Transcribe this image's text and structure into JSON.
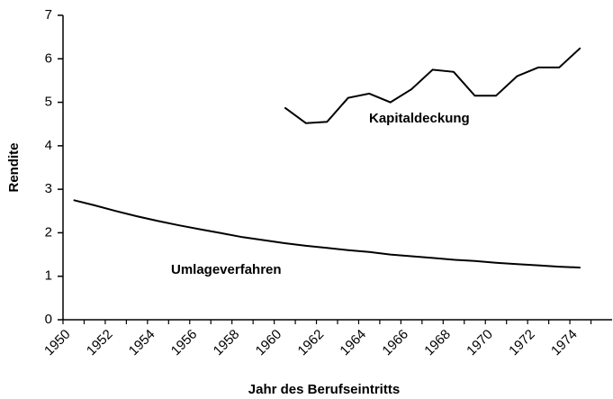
{
  "chart_data": {
    "type": "line",
    "ylabel": "Rendite",
    "xlabel": "Jahr des Berufseintritts",
    "categories": [
      "1950",
      null,
      "1952",
      null,
      "1954",
      null,
      "1956",
      null,
      "1958",
      null,
      "1960",
      null,
      "1962",
      null,
      "1964",
      null,
      "1966",
      null,
      "1968",
      null,
      "1970",
      null,
      "1972",
      null,
      "1974",
      null
    ],
    "series": [
      {
        "name": "Kapitaldeckung",
        "color": "#000000",
        "values": [
          null,
          null,
          null,
          null,
          null,
          null,
          null,
          null,
          null,
          null,
          4.88,
          4.52,
          4.55,
          5.1,
          5.2,
          5.0,
          5.3,
          5.75,
          5.7,
          5.15,
          5.15,
          5.6,
          5.8,
          5.8,
          6.25,
          null
        ]
      },
      {
        "name": "Umlageverfahren",
        "color": "#000000",
        "values": [
          2.75,
          2.63,
          2.5,
          2.38,
          2.27,
          2.17,
          2.08,
          1.99,
          1.9,
          1.83,
          1.76,
          1.7,
          1.65,
          1.6,
          1.56,
          1.5,
          1.46,
          1.42,
          1.38,
          1.35,
          1.31,
          1.28,
          1.25,
          1.22,
          1.2,
          null
        ]
      }
    ],
    "ylim": [
      0,
      7
    ],
    "yticks": [
      0,
      1,
      2,
      3,
      4,
      5,
      6,
      7
    ],
    "grid": false
  }
}
